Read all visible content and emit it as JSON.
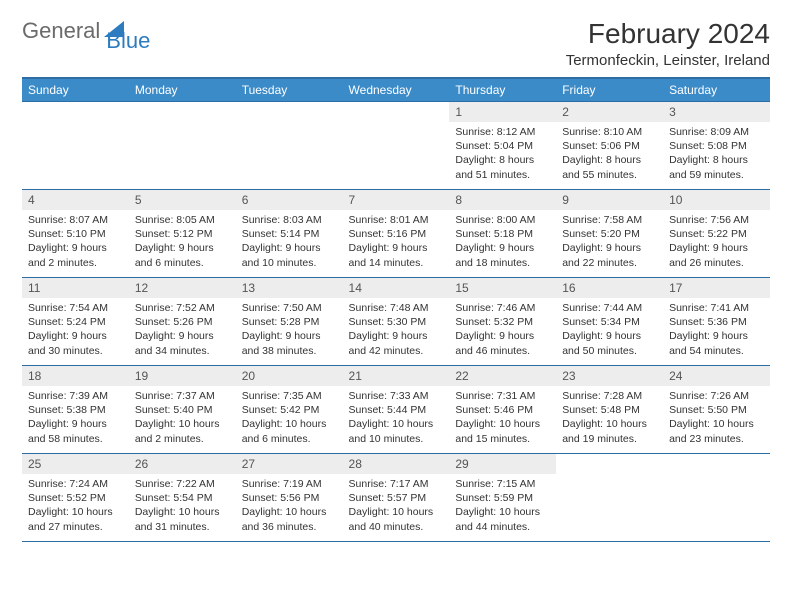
{
  "logo": {
    "text1": "General",
    "text2": "Blue",
    "shape_color": "#2d7cc0",
    "text1_color": "#6b6b6b"
  },
  "title": "February 2024",
  "location": "Termonfeckin, Leinster, Ireland",
  "colors": {
    "header_bg": "#3b8bc9",
    "header_border": "#2d6da3",
    "daynum_bg": "#ededed",
    "text": "#333333"
  },
  "weekdays": [
    "Sunday",
    "Monday",
    "Tuesday",
    "Wednesday",
    "Thursday",
    "Friday",
    "Saturday"
  ],
  "weeks": [
    [
      null,
      null,
      null,
      null,
      {
        "n": "1",
        "sr": "8:12 AM",
        "ss": "5:04 PM",
        "dl": "8 hours and 51 minutes."
      },
      {
        "n": "2",
        "sr": "8:10 AM",
        "ss": "5:06 PM",
        "dl": "8 hours and 55 minutes."
      },
      {
        "n": "3",
        "sr": "8:09 AM",
        "ss": "5:08 PM",
        "dl": "8 hours and 59 minutes."
      }
    ],
    [
      {
        "n": "4",
        "sr": "8:07 AM",
        "ss": "5:10 PM",
        "dl": "9 hours and 2 minutes."
      },
      {
        "n": "5",
        "sr": "8:05 AM",
        "ss": "5:12 PM",
        "dl": "9 hours and 6 minutes."
      },
      {
        "n": "6",
        "sr": "8:03 AM",
        "ss": "5:14 PM",
        "dl": "9 hours and 10 minutes."
      },
      {
        "n": "7",
        "sr": "8:01 AM",
        "ss": "5:16 PM",
        "dl": "9 hours and 14 minutes."
      },
      {
        "n": "8",
        "sr": "8:00 AM",
        "ss": "5:18 PM",
        "dl": "9 hours and 18 minutes."
      },
      {
        "n": "9",
        "sr": "7:58 AM",
        "ss": "5:20 PM",
        "dl": "9 hours and 22 minutes."
      },
      {
        "n": "10",
        "sr": "7:56 AM",
        "ss": "5:22 PM",
        "dl": "9 hours and 26 minutes."
      }
    ],
    [
      {
        "n": "11",
        "sr": "7:54 AM",
        "ss": "5:24 PM",
        "dl": "9 hours and 30 minutes."
      },
      {
        "n": "12",
        "sr": "7:52 AM",
        "ss": "5:26 PM",
        "dl": "9 hours and 34 minutes."
      },
      {
        "n": "13",
        "sr": "7:50 AM",
        "ss": "5:28 PM",
        "dl": "9 hours and 38 minutes."
      },
      {
        "n": "14",
        "sr": "7:48 AM",
        "ss": "5:30 PM",
        "dl": "9 hours and 42 minutes."
      },
      {
        "n": "15",
        "sr": "7:46 AM",
        "ss": "5:32 PM",
        "dl": "9 hours and 46 minutes."
      },
      {
        "n": "16",
        "sr": "7:44 AM",
        "ss": "5:34 PM",
        "dl": "9 hours and 50 minutes."
      },
      {
        "n": "17",
        "sr": "7:41 AM",
        "ss": "5:36 PM",
        "dl": "9 hours and 54 minutes."
      }
    ],
    [
      {
        "n": "18",
        "sr": "7:39 AM",
        "ss": "5:38 PM",
        "dl": "9 hours and 58 minutes."
      },
      {
        "n": "19",
        "sr": "7:37 AM",
        "ss": "5:40 PM",
        "dl": "10 hours and 2 minutes."
      },
      {
        "n": "20",
        "sr": "7:35 AM",
        "ss": "5:42 PM",
        "dl": "10 hours and 6 minutes."
      },
      {
        "n": "21",
        "sr": "7:33 AM",
        "ss": "5:44 PM",
        "dl": "10 hours and 10 minutes."
      },
      {
        "n": "22",
        "sr": "7:31 AM",
        "ss": "5:46 PM",
        "dl": "10 hours and 15 minutes."
      },
      {
        "n": "23",
        "sr": "7:28 AM",
        "ss": "5:48 PM",
        "dl": "10 hours and 19 minutes."
      },
      {
        "n": "24",
        "sr": "7:26 AM",
        "ss": "5:50 PM",
        "dl": "10 hours and 23 minutes."
      }
    ],
    [
      {
        "n": "25",
        "sr": "7:24 AM",
        "ss": "5:52 PM",
        "dl": "10 hours and 27 minutes."
      },
      {
        "n": "26",
        "sr": "7:22 AM",
        "ss": "5:54 PM",
        "dl": "10 hours and 31 minutes."
      },
      {
        "n": "27",
        "sr": "7:19 AM",
        "ss": "5:56 PM",
        "dl": "10 hours and 36 minutes."
      },
      {
        "n": "28",
        "sr": "7:17 AM",
        "ss": "5:57 PM",
        "dl": "10 hours and 40 minutes."
      },
      {
        "n": "29",
        "sr": "7:15 AM",
        "ss": "5:59 PM",
        "dl": "10 hours and 44 minutes."
      },
      null,
      null
    ]
  ],
  "labels": {
    "sunrise": "Sunrise: ",
    "sunset": "Sunset: ",
    "daylight": "Daylight: "
  }
}
